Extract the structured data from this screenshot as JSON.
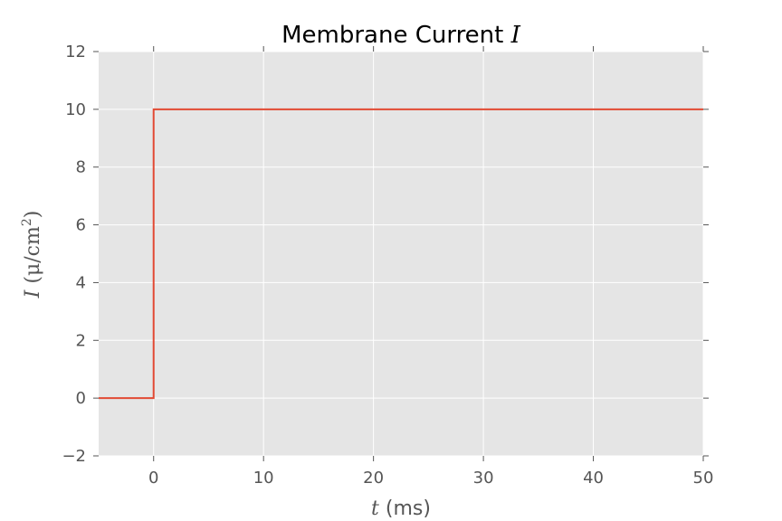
{
  "chart_data": {
    "type": "line",
    "title": "Membrane Current",
    "title_symbol": "I",
    "xlabel_symbol": "t",
    "xlabel_unit": "(ms)",
    "ylabel_symbol": "I",
    "ylabel_unit_prefix": "(μ/cm",
    "ylabel_unit_power": "2",
    "ylabel_unit_suffix": ")",
    "xlim": [
      -5,
      50
    ],
    "ylim": [
      -2,
      12
    ],
    "xticks": [
      0,
      10,
      20,
      30,
      40,
      50
    ],
    "yticks": [
      -2,
      0,
      2,
      4,
      6,
      8,
      10,
      12
    ],
    "xtick_labels": [
      "0",
      "10",
      "20",
      "30",
      "40",
      "50"
    ],
    "ytick_labels": [
      "−2",
      "0",
      "2",
      "4",
      "6",
      "8",
      "10",
      "12"
    ],
    "grid": true,
    "series": [
      {
        "x": [
          -5,
          0,
          0,
          50
        ],
        "y": [
          0,
          0,
          10,
          10
        ],
        "color": "#e24a33"
      }
    ],
    "background_color": "#e5e5e5",
    "grid_color": "#ffffff"
  }
}
